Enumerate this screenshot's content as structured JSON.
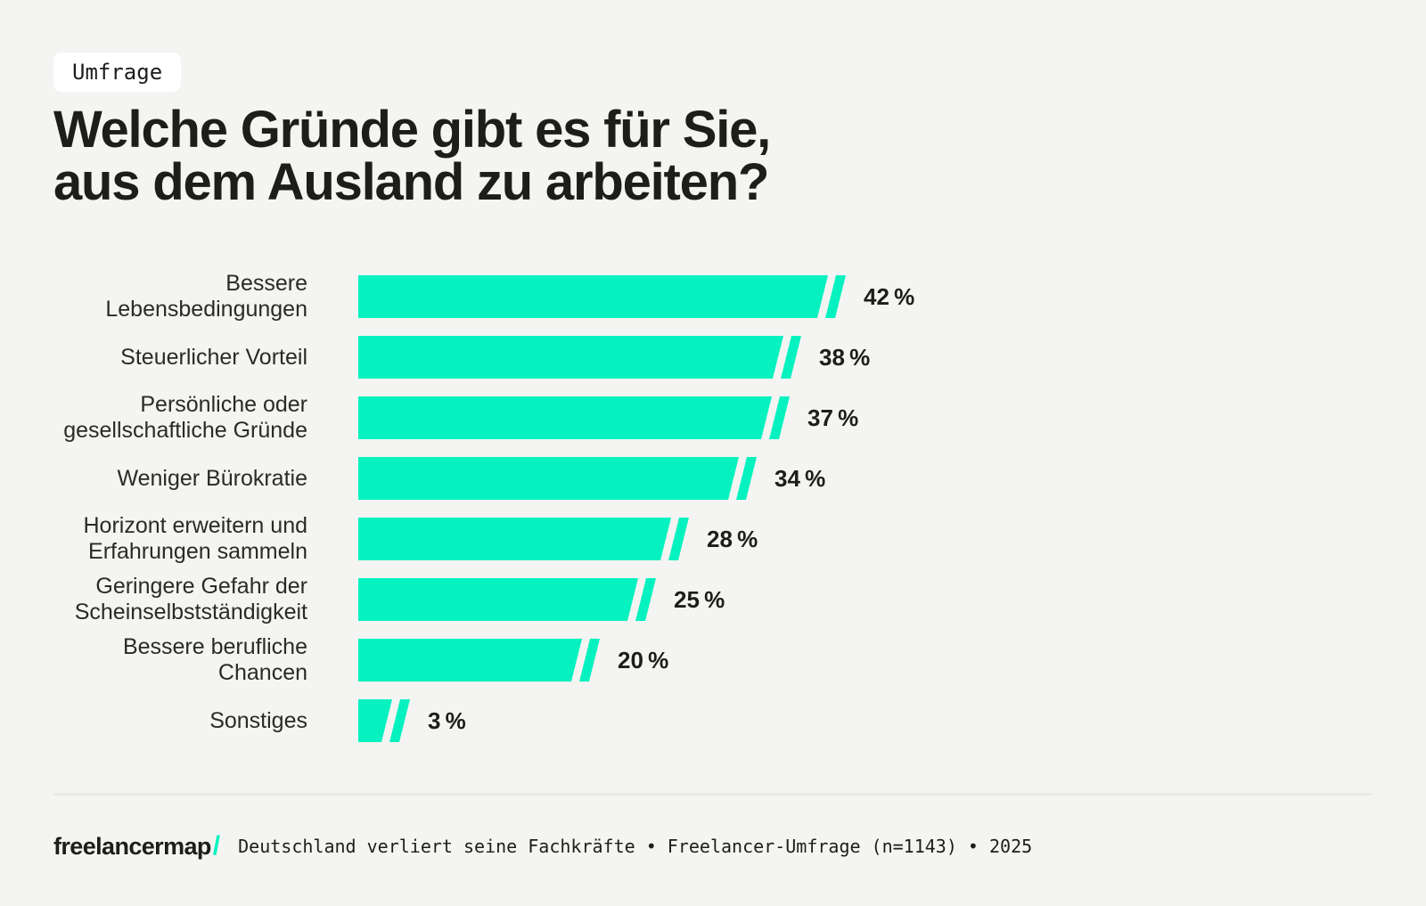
{
  "badge": {
    "label": "Umfrage"
  },
  "title": {
    "lines": [
      "Welche Gründe gibt es für Sie,",
      "aus dem Ausland zu arbeiten?"
    ]
  },
  "chart_data": {
    "type": "bar",
    "orientation": "horizontal",
    "title": "Welche Gründe gibt es für Sie, aus dem Ausland zu arbeiten?",
    "categories": [
      "Bessere Lebensbedingungen",
      "Steuerlicher Vorteil",
      "Persönliche oder gesellschaftliche Gründe",
      "Weniger Bürokratie",
      "Horizont erweitern und Erfahrungen sammeln",
      "Geringere Gefahr der Scheinselbstständigkeit",
      "Bessere berufliche Chancen",
      "Sonstiges"
    ],
    "category_lines": [
      [
        "Bessere",
        "Lebensbedingungen"
      ],
      [
        "Steuerlicher Vorteil"
      ],
      [
        "Persönliche oder",
        "gesellschaftliche Gründe"
      ],
      [
        "Weniger Bürokratie"
      ],
      [
        "Horizont erweitern und",
        "Erfahrungen sammeln"
      ],
      [
        "Geringere Gefahr der",
        "Scheinselbstständigkeit"
      ],
      [
        "Bessere berufliche",
        "Chancen"
      ],
      [
        "Sonstiges"
      ]
    ],
    "values": [
      42,
      38,
      37,
      34,
      28,
      25,
      20,
      3
    ],
    "value_suffix": "%",
    "xlim": [
      0,
      45
    ],
    "bar_color": "#05F2C0",
    "grid": false,
    "legend": false
  },
  "footer": {
    "logo_text": "freelancermap",
    "logo_slash": "/",
    "source_text": "Deutschland verliert seine Fachkräfte • Freelancer-Umfrage (n=1143) • 2025"
  },
  "colors": {
    "background": "#F4F4F2",
    "accent": "#05F2C0",
    "text": "#1D1D1B",
    "badge_background": "#FFFFFF",
    "divider": "#E9E9E7"
  }
}
